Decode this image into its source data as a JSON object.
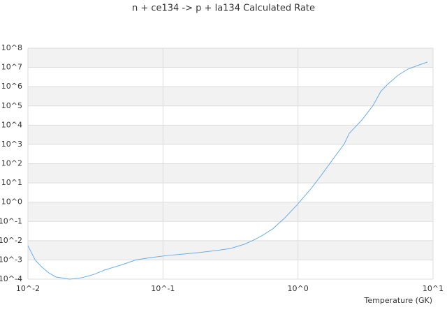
{
  "chart_data": {
    "type": "line",
    "title": "n + ce134 -> p + la134 Calculated Rate",
    "x_label": "Temperature (GK)",
    "xscale": "log",
    "yscale": "log",
    "grid": true,
    "xlim": [
      0.01,
      10
    ],
    "ylim": [
      0.0001,
      100000000
    ],
    "xticks": [
      {
        "value": 0.01,
        "label": "10^-2"
      },
      {
        "value": 0.1,
        "label": "10^-1"
      },
      {
        "value": 1,
        "label": "10^0"
      },
      {
        "value": 10,
        "label": "10^1"
      }
    ],
    "yticks": [
      {
        "value": 0.0001,
        "label": "10^-4"
      },
      {
        "value": 0.001,
        "label": "10^-3"
      },
      {
        "value": 0.01,
        "label": "10^-2"
      },
      {
        "value": 0.1,
        "label": "10^-1"
      },
      {
        "value": 1,
        "label": "10^0"
      },
      {
        "value": 10,
        "label": "10^1"
      },
      {
        "value": 100,
        "label": "10^2"
      },
      {
        "value": 1000,
        "label": "10^3"
      },
      {
        "value": 10000,
        "label": "10^4"
      },
      {
        "value": 100000,
        "label": "10^5"
      },
      {
        "value": 1000000,
        "label": "10^6"
      },
      {
        "value": 10000000,
        "label": "10^7"
      },
      {
        "value": 100000000,
        "label": "10^8"
      }
    ],
    "x": [
      0.01,
      0.0113,
      0.0127,
      0.0143,
      0.0161,
      0.0204,
      0.0253,
      0.031,
      0.037,
      0.05,
      0.063,
      0.08,
      0.108,
      0.14,
      0.185,
      0.25,
      0.315,
      0.4,
      0.46,
      0.54,
      0.65,
      0.8,
      0.98,
      1.25,
      1.5,
      1.8,
      2.2,
      2.4,
      3.0,
      3.6,
      4.1,
      4.6,
      5.5,
      6.5,
      7.9,
      9.1
    ],
    "series": [
      {
        "color": "#6aaee8",
        "values": [
          0.0055,
          0.001,
          0.00042,
          0.00021,
          0.00013,
          0.0001,
          0.00012,
          0.00018,
          0.0003,
          0.00057,
          0.001,
          0.0013,
          0.0017,
          0.002,
          0.0024,
          0.0031,
          0.0039,
          0.0065,
          0.01,
          0.018,
          0.041,
          0.155,
          0.7,
          5.1,
          27,
          158,
          1070,
          3800,
          20000,
          107000,
          560000,
          1300000,
          3900000,
          8100000,
          13500000,
          19000000
        ]
      }
    ]
  }
}
